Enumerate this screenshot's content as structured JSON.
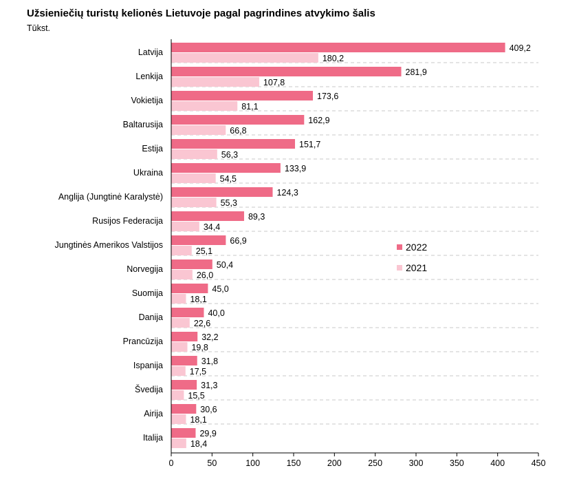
{
  "chart_data": {
    "type": "bar",
    "orientation": "horizontal",
    "title": "Užsieniečių turistų kelionės Lietuvoje pagal pagrindines atvykimo šalis",
    "subtitle": "Tūkst.",
    "categories": [
      "Latvija",
      "Lenkija",
      "Vokietija",
      "Baltarusija",
      "Estija",
      "Ukraina",
      "Anglija (Jungtinė Karalystė)",
      "Rusijos Federacija",
      "Jungtinės Amerikos Valstijos",
      "Norvegija",
      "Suomija",
      "Danija",
      "Prancūzija",
      "Ispanija",
      "Švedija",
      "Airija",
      "Italija"
    ],
    "series": [
      {
        "name": "2022",
        "color": "#ef6b87",
        "values": [
          409.2,
          281.9,
          173.6,
          162.9,
          151.7,
          133.9,
          124.3,
          89.3,
          66.9,
          50.4,
          45.0,
          40.0,
          32.2,
          31.8,
          31.3,
          30.6,
          29.9
        ],
        "labels": [
          "409,2",
          "281,9",
          "173,6",
          "162,9",
          "151,7",
          "133,9",
          "124,3",
          "89,3",
          "66,9",
          "50,4",
          "45,0",
          "40,0",
          "32,2",
          "31,8",
          "31,3",
          "30,6",
          "29,9"
        ]
      },
      {
        "name": "2021",
        "color": "#fac6d2",
        "values": [
          180.2,
          107.8,
          81.1,
          66.8,
          56.3,
          54.5,
          55.3,
          34.4,
          25.1,
          26.0,
          18.1,
          22.6,
          19.8,
          17.5,
          15.5,
          18.1,
          18.4
        ],
        "labels": [
          "180,2",
          "107,8",
          "81,1",
          "66,8",
          "56,3",
          "54,5",
          "55,3",
          "34,4",
          "25,1",
          "26,0",
          "18,1",
          "22,6",
          "19,8",
          "17,5",
          "15,5",
          "18,1",
          "18,4"
        ]
      }
    ],
    "xlim": [
      0,
      450
    ],
    "xticks": [
      0,
      50,
      100,
      150,
      200,
      250,
      300,
      350,
      400,
      450
    ],
    "grid": "horizontal dashed",
    "legend_position": "right"
  }
}
